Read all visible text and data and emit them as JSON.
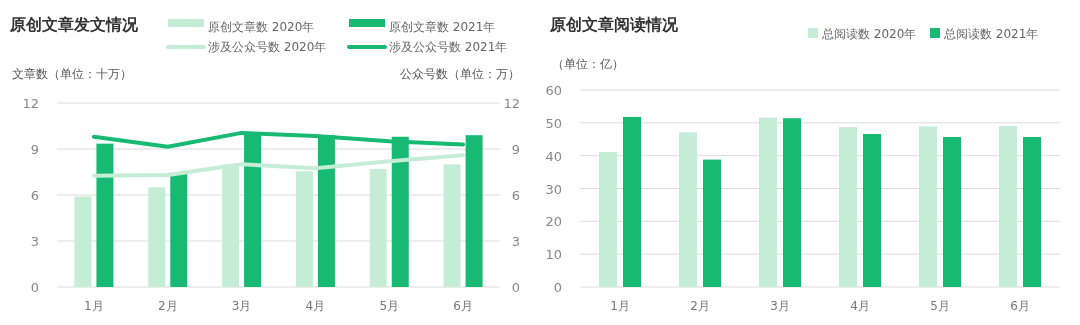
{
  "chart_data": [
    {
      "type": "bar",
      "title": "原创文章发文情况",
      "ylabel": "文章数（单位：十万）",
      "y2label": "公众号数（单位：万）",
      "categories": [
        "1月",
        "2月",
        "3月",
        "4月",
        "5月",
        "6月"
      ],
      "series": [
        {
          "name": "原创文章数 2020年",
          "color": "#c5edd6",
          "values": [
            5.9,
            6.5,
            8.0,
            7.55,
            7.7,
            8.0
          ]
        },
        {
          "name": "原创文章数 2021年",
          "color": "#18b972",
          "values": [
            9.35,
            7.4,
            10.1,
            9.9,
            9.8,
            9.9
          ]
        },
        {
          "name": "涉及公众号数 2020年",
          "type": "line",
          "axis": "y2",
          "color": "#c5edd6",
          "values": [
            7.25,
            7.3,
            8.0,
            7.75,
            8.2,
            8.6
          ]
        },
        {
          "name": "涉及公众号数 2021年",
          "type": "line",
          "axis": "y2",
          "color": "#18b972",
          "values": [
            9.8,
            9.15,
            10.05,
            9.85,
            9.5,
            9.3
          ]
        }
      ],
      "ylim": [
        0,
        12
      ],
      "yticks": [
        0,
        3,
        6,
        9,
        12
      ],
      "y2lim": [
        0,
        12
      ],
      "y2ticks": [
        0,
        3,
        6,
        9,
        12
      ],
      "grid": "y",
      "legend": "top",
      "marker": "none",
      "line_style": "solid"
    },
    {
      "type": "bar",
      "title": "原创文章阅读情况",
      "ylabel": "（单位：亿）",
      "categories": [
        "1月",
        "2月",
        "3月",
        "4月",
        "5月",
        "6月"
      ],
      "series": [
        {
          "name": "总阅读数 2020年",
          "color": "#c5edd6",
          "values": [
            41.1,
            47.1,
            51.6,
            48.7,
            48.9,
            49.0
          ]
        },
        {
          "name": "总阅读数 2021年",
          "color": "#18b972",
          "values": [
            51.8,
            38.8,
            51.4,
            46.6,
            45.7,
            45.7
          ]
        }
      ],
      "ylim": [
        0,
        60
      ],
      "yticks": [
        0,
        10,
        20,
        30,
        40,
        50,
        60
      ],
      "grid": "y",
      "legend": "top right"
    }
  ]
}
